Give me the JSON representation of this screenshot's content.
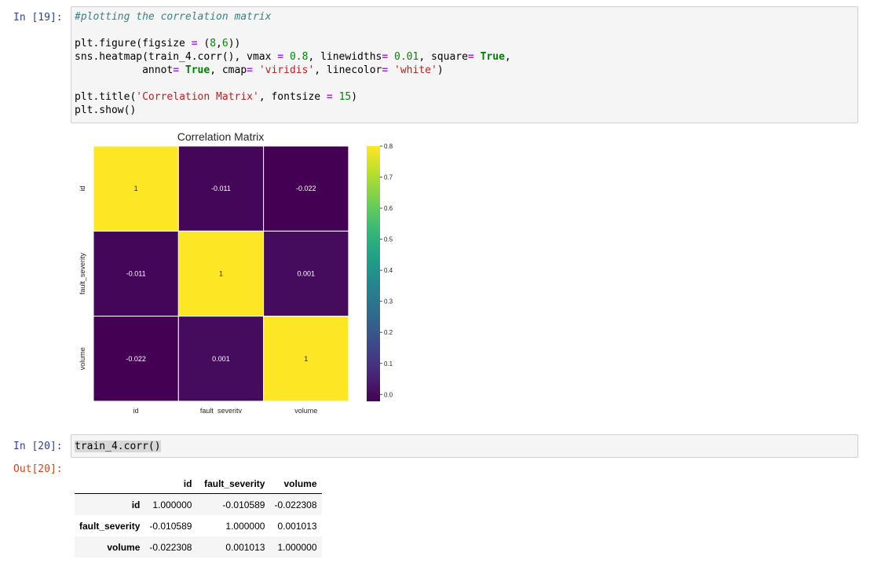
{
  "cells": [
    {
      "prompt": "In [19]:",
      "code_lines": [
        [
          {
            "t": "#plotting the correlation matrix",
            "c": "cm"
          }
        ],
        [],
        [
          {
            "t": "plt.figure(figsize "
          },
          {
            "t": "=",
            "c": "op"
          },
          {
            "t": " ("
          },
          {
            "t": "8",
            "c": "num"
          },
          {
            "t": ","
          },
          {
            "t": "6",
            "c": "num"
          },
          {
            "t": "))"
          }
        ],
        [
          {
            "t": "sns.heatmap(train_4.corr(), vmax "
          },
          {
            "t": "=",
            "c": "op"
          },
          {
            "t": " "
          },
          {
            "t": "0.8",
            "c": "num"
          },
          {
            "t": ", linewidths"
          },
          {
            "t": "=",
            "c": "op"
          },
          {
            "t": " "
          },
          {
            "t": "0.01",
            "c": "num"
          },
          {
            "t": ", square"
          },
          {
            "t": "=",
            "c": "op"
          },
          {
            "t": " "
          },
          {
            "t": "True",
            "c": "kw"
          },
          {
            "t": ","
          }
        ],
        [
          {
            "t": "           annot"
          },
          {
            "t": "=",
            "c": "op"
          },
          {
            "t": " "
          },
          {
            "t": "True",
            "c": "kw"
          },
          {
            "t": ", cmap"
          },
          {
            "t": "=",
            "c": "op"
          },
          {
            "t": " "
          },
          {
            "t": "'viridis'",
            "c": "str"
          },
          {
            "t": ", linecolor"
          },
          {
            "t": "=",
            "c": "op"
          },
          {
            "t": " "
          },
          {
            "t": "'white'",
            "c": "str"
          },
          {
            "t": ")"
          }
        ],
        [],
        [
          {
            "t": "plt.title("
          },
          {
            "t": "'Correlation Matrix'",
            "c": "str"
          },
          {
            "t": ", fontsize "
          },
          {
            "t": "=",
            "c": "op"
          },
          {
            "t": " "
          },
          {
            "t": "15",
            "c": "num"
          },
          {
            "t": ")"
          }
        ],
        [
          {
            "t": "plt.show()"
          }
        ]
      ]
    },
    {
      "prompt": "In [20]:",
      "code_lines": [
        [
          {
            "t": "train_4.corr()",
            "c": "sel"
          }
        ]
      ]
    }
  ],
  "chart_data": {
    "type": "heatmap",
    "title": "Correlation Matrix",
    "rows": [
      "id",
      "fault_severity",
      "volume"
    ],
    "columns": [
      "id",
      "fault_severity",
      "volume"
    ],
    "values": [
      [
        1,
        -0.011,
        -0.022
      ],
      [
        -0.011,
        1,
        0.001
      ],
      [
        -0.022,
        0.001,
        1
      ]
    ],
    "annotations": [
      [
        "1",
        "-0.011",
        "-0.022"
      ],
      [
        "-0.011",
        "1",
        "0.001"
      ],
      [
        "-0.022",
        "0.001",
        "1"
      ]
    ],
    "colormap": "viridis",
    "vmin": -0.022,
    "vmax": 0.8,
    "linecolor": "#ffffff",
    "colorbar_ticks": [
      "0.0",
      "0.1",
      "0.2",
      "0.3",
      "0.4",
      "0.5",
      "0.6",
      "0.7",
      "0.8"
    ]
  },
  "output": {
    "prompt": "Out[20]:",
    "columns": [
      "id",
      "fault_severity",
      "volume"
    ],
    "rows": [
      {
        "index": "id",
        "values": [
          "1.000000",
          "-0.010589",
          "-0.022308"
        ]
      },
      {
        "index": "fault_severity",
        "values": [
          "-0.010589",
          "1.000000",
          "0.001013"
        ]
      },
      {
        "index": "volume",
        "values": [
          "-0.022308",
          "0.001013",
          "1.000000"
        ]
      }
    ]
  }
}
